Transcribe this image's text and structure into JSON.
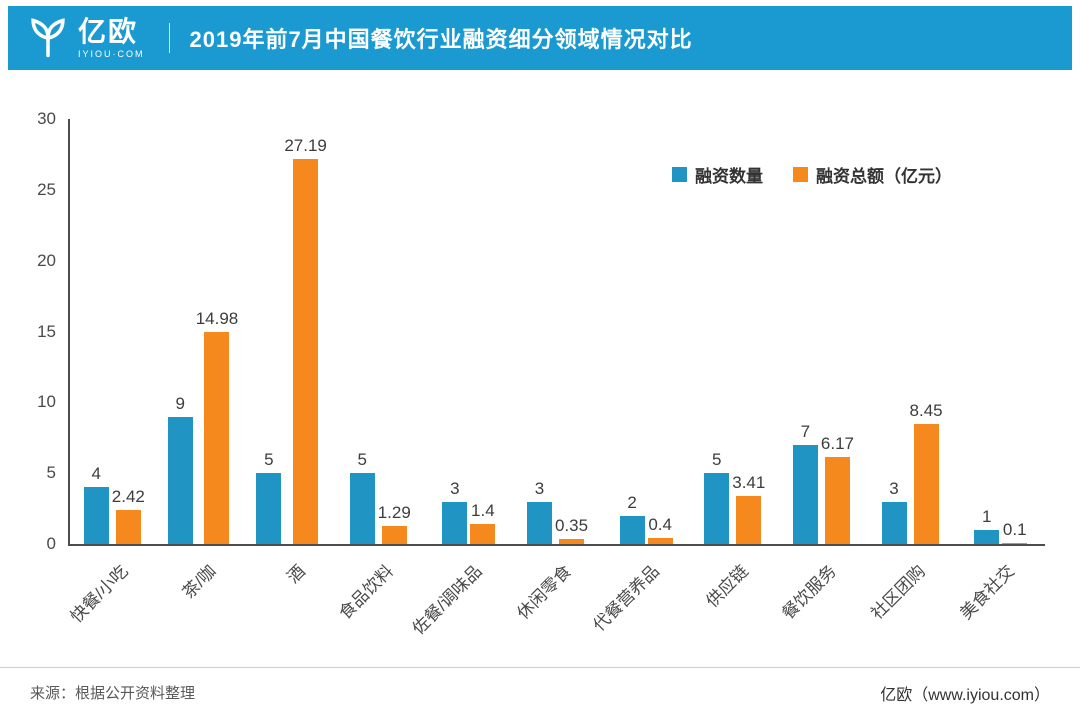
{
  "header": {
    "logo_text": "亿欧",
    "logo_sub": "IYIOU·COM",
    "title": "2019年前7月中国餐饮行业融资细分领域情况对比"
  },
  "chart_data": {
    "type": "bar",
    "title": "2019年前7月中国餐饮行业融资细分领域情况对比",
    "categories": [
      "快餐/小吃",
      "茶/咖",
      "酒",
      "食品饮料",
      "佐餐/调味品",
      "休闲零食",
      "代餐营养品",
      "供应链",
      "餐饮服务",
      "社区团购",
      "美食社交"
    ],
    "series": [
      {
        "key": "financing-count",
        "name": "融资数量",
        "color": "#2095c3",
        "values": [
          4,
          9,
          5,
          5,
          3,
          3,
          2,
          5,
          7,
          3,
          1
        ]
      },
      {
        "key": "financing-amount",
        "name": "融资总额（亿元）",
        "color": "#f5891d",
        "values": [
          2.42,
          14.98,
          27.19,
          1.29,
          1.4,
          0.35,
          0.4,
          3.41,
          6.17,
          8.45,
          0.1
        ]
      }
    ],
    "xlabel": "",
    "ylabel": "",
    "ylim": [
      0,
      30
    ],
    "yticks": [
      0,
      5,
      10,
      15,
      20,
      25,
      30
    ],
    "grid": false,
    "legend_position": "top-right"
  },
  "colors": {
    "header_blue": "#1b9ad2",
    "bar_blue": "#2095c3",
    "bar_orange": "#f5891d"
  },
  "footer": {
    "source": "来源：根据公开资料整理",
    "brand": "亿欧（www.iyiou.com）"
  }
}
